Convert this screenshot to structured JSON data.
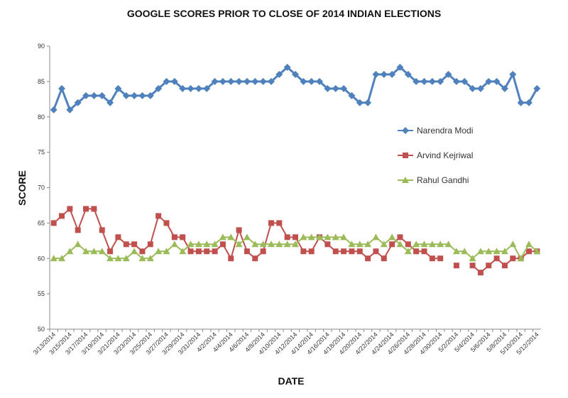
{
  "chart_data": {
    "type": "line",
    "title": "GOOGLE SCORES PRIOR TO CLOSE OF 2014 INDIAN ELECTIONS",
    "xlabel": "DATE",
    "ylabel": "SCORE",
    "ylim": [
      50,
      90
    ],
    "yticks": [
      50,
      55,
      60,
      65,
      70,
      75,
      80,
      85,
      90
    ],
    "legend_position": "right",
    "x": [
      "3/13/2014",
      "3/14/2014",
      "3/15/2014",
      "3/16/2014",
      "3/17/2014",
      "3/18/2014",
      "3/19/2014",
      "3/20/2014",
      "3/21/2014",
      "3/22/2014",
      "3/23/2014",
      "3/24/2014",
      "3/25/2014",
      "3/26/2014",
      "3/27/2014",
      "3/28/2014",
      "3/29/2014",
      "3/30/2014",
      "3/31/2014",
      "4/1/2014",
      "4/2/2014",
      "4/3/2014",
      "4/4/2014",
      "4/5/2014",
      "4/6/2014",
      "4/7/2014",
      "4/8/2014",
      "4/9/2014",
      "4/10/2014",
      "4/11/2014",
      "4/12/2014",
      "4/13/2014",
      "4/14/2014",
      "4/15/2014",
      "4/16/2014",
      "4/17/2014",
      "4/18/2014",
      "4/19/2014",
      "4/20/2014",
      "4/21/2014",
      "4/22/2014",
      "4/23/2014",
      "4/24/2014",
      "4/25/2014",
      "4/26/2014",
      "4/27/2014",
      "4/28/2014",
      "4/29/2014",
      "4/30/2014",
      "5/1/2014",
      "5/2/2014",
      "5/3/2014",
      "5/4/2014",
      "5/5/2014",
      "5/6/2014",
      "5/7/2014",
      "5/8/2014",
      "5/9/2014",
      "5/10/2014",
      "5/11/2014",
      "5/12/2014"
    ],
    "series": [
      {
        "name": "Narendra Modi",
        "color": "#4f81bd",
        "marker": "diamond",
        "values": [
          81,
          84,
          81,
          82,
          83,
          83,
          83,
          82,
          84,
          83,
          83,
          83,
          83,
          84,
          85,
          85,
          84,
          84,
          84,
          84,
          85,
          85,
          85,
          85,
          85,
          85,
          85,
          85,
          86,
          87,
          86,
          85,
          85,
          85,
          84,
          84,
          84,
          83,
          82,
          82,
          86,
          86,
          86,
          87,
          86,
          85,
          85,
          85,
          85,
          86,
          85,
          85,
          84,
          84,
          85,
          85,
          84,
          86,
          82,
          82,
          84
        ]
      },
      {
        "name": "Arvind Kejriwal",
        "color": "#c0504d",
        "marker": "square",
        "values": [
          65,
          66,
          67,
          64,
          67,
          67,
          64,
          61,
          63,
          62,
          62,
          61,
          62,
          66,
          65,
          63,
          63,
          61,
          61,
          61,
          61,
          62,
          60,
          64,
          61,
          60,
          61,
          65,
          65,
          63,
          63,
          61,
          61,
          63,
          62,
          61,
          61,
          61,
          61,
          60,
          61,
          60,
          62,
          63,
          62,
          61,
          61,
          60,
          60,
          null,
          59,
          null,
          59,
          58,
          59,
          60,
          59,
          60,
          60,
          61,
          61
        ]
      },
      {
        "name": "Rahul Gandhi",
        "color": "#9bbb59",
        "marker": "triangle",
        "values": [
          60,
          60,
          61,
          62,
          61,
          61,
          61,
          60,
          60,
          60,
          61,
          60,
          60,
          61,
          61,
          62,
          61,
          62,
          62,
          62,
          62,
          63,
          63,
          62,
          63,
          62,
          62,
          62,
          62,
          62,
          62,
          63,
          63,
          63,
          63,
          63,
          63,
          62,
          62,
          62,
          63,
          62,
          63,
          62,
          61,
          62,
          62,
          62,
          62,
          62,
          61,
          61,
          60,
          61,
          61,
          61,
          61,
          62,
          60,
          62,
          61
        ]
      }
    ]
  }
}
